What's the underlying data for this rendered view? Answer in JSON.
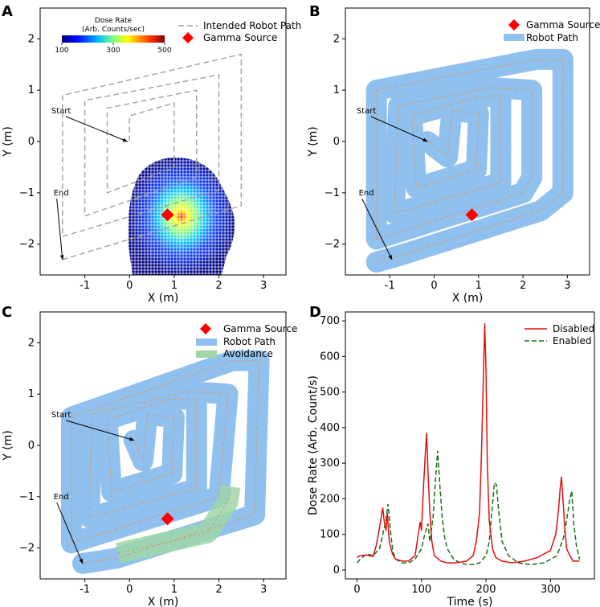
{
  "chart_data": [
    {
      "panel": "A",
      "type": "heatmap",
      "xlabel": "X (m)",
      "ylabel": "Y (m)",
      "xlim": [
        -2.0,
        3.5
      ],
      "ylim": [
        -2.6,
        2.6
      ],
      "xticks": [
        -1,
        0,
        1,
        2,
        3
      ],
      "yticks": [
        -2,
        -1,
        0,
        1,
        2
      ],
      "colorbar": {
        "title_line1": "Dose Rate",
        "title_line2": "(Arb. Counts/sec)",
        "ticks": [
          100,
          300,
          500
        ],
        "colors": [
          "#00007f",
          "#0000ff",
          "#00bfff",
          "#7fff7f",
          "#ffff00",
          "#ff7f00",
          "#ff0000",
          "#7f0000"
        ]
      },
      "legend": [
        {
          "label": "Intended Robot Path",
          "style": "dashed"
        },
        {
          "label": "Gamma Source",
          "style": "diamond"
        }
      ],
      "source": {
        "x": 0.85,
        "y": -1.43
      },
      "annotations": [
        {
          "text": "Start",
          "x": -1.75,
          "y": 0.55,
          "arrow_to": [
            -0.05,
            0.0
          ]
        },
        {
          "text": "End",
          "x": -1.7,
          "y": -1.05,
          "arrow_to": [
            -1.5,
            -2.3
          ]
        }
      ],
      "intended_path": [
        [
          -1.5,
          -2.3
        ],
        [
          2.5,
          -1.25
        ],
        [
          2.5,
          1.7
        ],
        [
          -1.5,
          0.9
        ],
        [
          -1.5,
          -1.85
        ],
        [
          2.0,
          -0.95
        ],
        [
          2.0,
          1.3
        ],
        [
          -1.0,
          0.8
        ],
        [
          -1.0,
          -1.45
        ],
        [
          1.5,
          -0.7
        ],
        [
          1.5,
          1.0
        ],
        [
          -0.5,
          0.65
        ],
        [
          -0.5,
          -1.0
        ],
        [
          1.0,
          -0.5
        ],
        [
          1.0,
          0.75
        ],
        [
          0.0,
          0.5
        ],
        [
          0.0,
          0.0
        ]
      ]
    },
    {
      "panel": "B",
      "type": "line",
      "xlabel": "X (m)",
      "ylabel": "Y (m)",
      "xlim": [
        -2.0,
        3.5
      ],
      "ylim": [
        -2.6,
        2.6
      ],
      "xticks": [
        -1,
        0,
        1,
        2,
        3
      ],
      "yticks": [
        -2,
        -1,
        0,
        1,
        2
      ],
      "legend": [
        {
          "label": "Gamma Source",
          "style": "diamond"
        },
        {
          "label": "Robot Path",
          "style": "band"
        }
      ],
      "source": {
        "x": 0.85,
        "y": -1.43
      },
      "annotations": [
        {
          "text": "Start",
          "x": -1.75,
          "y": 0.55,
          "arrow_to": [
            -0.15,
            0.0
          ]
        },
        {
          "text": "End",
          "x": -1.7,
          "y": -1.05,
          "arrow_to": [
            -0.95,
            -2.3
          ]
        }
      ],
      "robot_path": [
        [
          -1.3,
          -2.35
        ],
        [
          -0.7,
          -2.2
        ],
        [
          2.4,
          -1.35
        ],
        [
          2.9,
          -1.0
        ],
        [
          2.9,
          1.6
        ],
        [
          2.3,
          1.6
        ],
        [
          -1.3,
          1.0
        ],
        [
          -1.3,
          -1.9
        ],
        [
          2.0,
          -1.0
        ],
        [
          2.2,
          -0.7
        ],
        [
          2.2,
          1.0
        ],
        [
          1.3,
          1.05
        ],
        [
          -0.8,
          0.7
        ],
        [
          -0.9,
          -1.4
        ],
        [
          1.5,
          -0.8
        ],
        [
          1.5,
          0.9
        ],
        [
          0.9,
          0.85
        ],
        [
          -0.5,
          0.5
        ],
        [
          -0.4,
          -0.9
        ],
        [
          0.95,
          -0.55
        ],
        [
          1.0,
          0.55
        ],
        [
          0.4,
          0.6
        ],
        [
          0.3,
          -0.3
        ],
        [
          -0.15,
          0.0
        ]
      ]
    },
    {
      "panel": "C",
      "type": "line",
      "xlabel": "X (m)",
      "ylabel": "Y (m)",
      "xlim": [
        -2.0,
        3.5
      ],
      "ylim": [
        -2.6,
        2.6
      ],
      "xticks": [
        -1,
        0,
        1,
        2,
        3
      ],
      "yticks": [
        -2,
        -1,
        0,
        1,
        2
      ],
      "legend": [
        {
          "label": "Gamma Source",
          "style": "diamond"
        },
        {
          "label": "Robot Path",
          "style": "band"
        },
        {
          "label": "Avoidance",
          "style": "band-green"
        }
      ],
      "source": {
        "x": 0.85,
        "y": -1.43
      },
      "annotations": [
        {
          "text": "Start",
          "x": -1.75,
          "y": 0.55,
          "arrow_to": [
            0.1,
            0.1
          ]
        },
        {
          "text": "End",
          "x": -1.7,
          "y": -1.05,
          "arrow_to": [
            -1.05,
            -2.3
          ]
        }
      ],
      "robot_path": [
        [
          -1.05,
          -2.3
        ],
        [
          -0.3,
          -2.2
        ],
        [
          2.8,
          -1.35
        ],
        [
          2.9,
          1.65
        ],
        [
          2.3,
          1.65
        ],
        [
          -1.3,
          0.55
        ],
        [
          -1.3,
          -1.9
        ],
        [
          2.0,
          -1.0
        ],
        [
          2.2,
          1.0
        ],
        [
          1.3,
          1.05
        ],
        [
          -0.85,
          0.6
        ],
        [
          -0.9,
          -1.4
        ],
        [
          1.5,
          -0.85
        ],
        [
          1.5,
          0.9
        ],
        [
          0.9,
          0.9
        ],
        [
          -0.5,
          0.5
        ],
        [
          -0.4,
          -0.9
        ],
        [
          0.95,
          -0.55
        ],
        [
          1.0,
          0.55
        ],
        [
          0.4,
          0.6
        ],
        [
          0.3,
          -0.3
        ],
        [
          0.1,
          0.1
        ]
      ],
      "avoidance_path": [
        [
          -0.25,
          -2.1
        ],
        [
          1.75,
          -1.7
        ],
        [
          2.2,
          -1.1
        ],
        [
          2.25,
          -0.8
        ]
      ]
    },
    {
      "panel": "D",
      "type": "line",
      "xlabel": "Time (s)",
      "ylabel": "Dose Rate (Arb. Count/s)",
      "xlim": [
        -18,
        368
      ],
      "ylim": [
        -25,
        725
      ],
      "xticks": [
        0,
        100,
        200,
        300
      ],
      "yticks": [
        0,
        100,
        200,
        300,
        400,
        500,
        600,
        700
      ],
      "series": [
        {
          "name": "Disabled",
          "color": "#e01010",
          "style": "solid",
          "x": [
            0,
            5,
            15,
            25,
            30,
            35,
            40,
            42,
            45,
            47,
            50,
            55,
            60,
            70,
            80,
            90,
            95,
            98,
            100,
            103,
            106,
            108,
            110,
            113,
            116,
            120,
            130,
            140,
            150,
            160,
            170,
            180,
            185,
            190,
            193,
            196,
            198,
            200,
            202,
            205,
            210,
            215,
            225,
            240,
            260,
            280,
            300,
            308,
            312,
            315,
            317,
            320,
            322,
            325,
            330,
            335,
            345
          ],
          "y": [
            35,
            40,
            42,
            38,
            70,
            120,
            175,
            140,
            110,
            160,
            80,
            45,
            30,
            25,
            25,
            40,
            100,
            135,
            110,
            230,
            330,
            385,
            280,
            160,
            80,
            40,
            25,
            20,
            20,
            22,
            25,
            40,
            80,
            160,
            330,
            550,
            693,
            560,
            300,
            140,
            60,
            35,
            25,
            20,
            25,
            35,
            55,
            100,
            160,
            230,
            262,
            180,
            120,
            60,
            40,
            25,
            25
          ]
        },
        {
          "name": "Enabled",
          "color": "#1a6e1a",
          "style": "dashed",
          "x": [
            0,
            5,
            15,
            25,
            35,
            40,
            45,
            48,
            50,
            53,
            56,
            60,
            70,
            80,
            90,
            100,
            105,
            110,
            113,
            118,
            122,
            125,
            128,
            132,
            136,
            140,
            150,
            160,
            170,
            180,
            190,
            200,
            205,
            210,
            213,
            216,
            220,
            225,
            235,
            250,
            270,
            290,
            310,
            320,
            325,
            330,
            333,
            336,
            340,
            345
          ],
          "y": [
            20,
            30,
            45,
            40,
            60,
            100,
            140,
            185,
            150,
            90,
            50,
            30,
            20,
            20,
            30,
            60,
            100,
            130,
            80,
            150,
            260,
            335,
            250,
            150,
            90,
            60,
            30,
            20,
            15,
            15,
            20,
            40,
            80,
            180,
            245,
            240,
            160,
            80,
            40,
            20,
            15,
            20,
            40,
            90,
            140,
            200,
            222,
            130,
            70,
            30
          ]
        }
      ],
      "legend": [
        {
          "label": "Disabled"
        },
        {
          "label": "Enabled"
        }
      ]
    }
  ],
  "labels": {
    "panel_a": "A",
    "panel_b": "B",
    "panel_c": "C",
    "panel_d": "D",
    "cb_title1": "Dose Rate",
    "cb_title2": "(Arb. Counts/sec)",
    "leg_intended": "Intended Robot Path",
    "leg_gamma": "Gamma Source",
    "leg_robot": "Robot Path",
    "leg_avoid": "Avoidance",
    "leg_disabled": "Disabled",
    "leg_enabled": "Enabled",
    "start": "Start",
    "end": "End",
    "xlabel_xy": "X (m)",
    "ylabel_xy": "Y (m)",
    "xlabel_time": "Time (s)",
    "ylabel_dose": "Dose Rate (Arb. Count/s)"
  }
}
